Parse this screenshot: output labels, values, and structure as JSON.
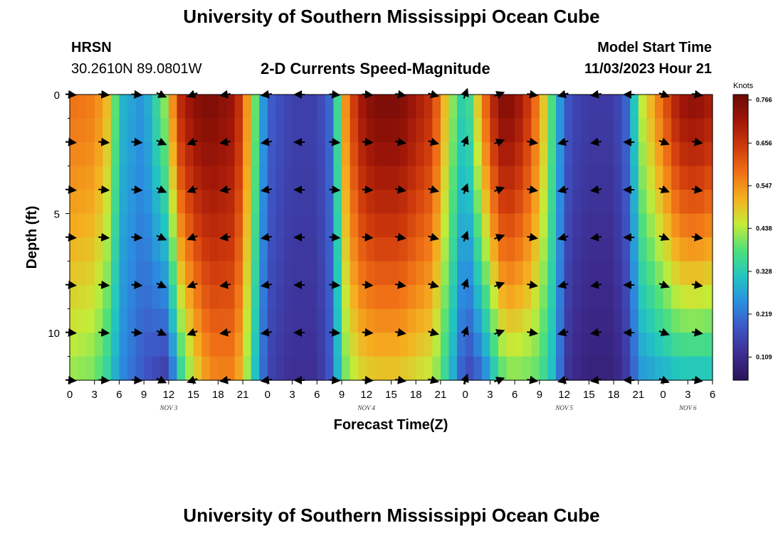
{
  "header": {
    "title": "University of Southern Mississippi Ocean Cube",
    "station": "HRSN",
    "coords": "30.2610N  89.0801W",
    "subtitle": "2-D Currents Speed-Magnitude",
    "model_label": "Model Start Time",
    "model_time": "11/03/2023 Hour 21"
  },
  "footer": {
    "title": "University of Southern Mississippi Ocean Cube"
  },
  "colors": {
    "scale": [
      "#2c1459",
      "#3d2c90",
      "#3e55c6",
      "#2a8fe0",
      "#22c6c0",
      "#4fe07a",
      "#c4ec38",
      "#f5b020",
      "#f07016",
      "#cf3a0c",
      "#a01608",
      "#6a0a06"
    ]
  },
  "chart_data": {
    "type": "heatmap",
    "xlabel": "Forecast Time(Z)",
    "ylabel": "Depth (ft)",
    "x_tick_labels": [
      "0",
      "3",
      "6",
      "9",
      "12",
      "15",
      "18",
      "21",
      "0",
      "3",
      "6",
      "9",
      "12",
      "15",
      "18",
      "21",
      "0",
      "3",
      "6",
      "9",
      "12",
      "15",
      "18",
      "21",
      "0",
      "3",
      "6"
    ],
    "x_ticks_hours": [
      0,
      3,
      6,
      9,
      12,
      15,
      18,
      21,
      24,
      27,
      30,
      33,
      36,
      39,
      42,
      45,
      48,
      51,
      54,
      57,
      60,
      63,
      66,
      69,
      72,
      75,
      78
    ],
    "y_ticks_ft": [
      0,
      5,
      10
    ],
    "y_tick_labels": [
      "0",
      "5",
      "10"
    ],
    "xlim_hours": [
      0,
      78
    ],
    "ylim_ft": [
      0,
      12
    ],
    "day_labels": [
      {
        "hour": 12,
        "text": "NOV 3"
      },
      {
        "hour": 36,
        "text": "NOV 4"
      },
      {
        "hour": 60,
        "text": "NOV 5"
      },
      {
        "hour": 75,
        "text": "NOV 6"
      }
    ],
    "colorbar": {
      "title": "Knots",
      "ticks": [
        0.766,
        0.656,
        0.547,
        0.438,
        0.328,
        0.219,
        0.109
      ],
      "tick_labels": [
        "0.766",
        "0.656",
        "0.547",
        "0.438",
        "0.328",
        "0.219",
        "0.109"
      ],
      "range": [
        0.05,
        0.78
      ]
    },
    "speed_profile": {
      "hours": [
        0,
        3,
        5,
        6,
        9,
        12,
        13,
        15,
        17,
        20,
        21,
        23,
        24,
        25,
        27,
        30,
        32,
        33,
        35,
        37,
        40,
        44,
        46,
        48,
        50,
        52,
        53,
        55,
        57,
        59,
        60,
        61,
        63,
        66,
        68,
        69,
        72,
        74,
        76,
        78
      ],
      "surface_knots": [
        0.58,
        0.57,
        0.48,
        0.3,
        0.25,
        0.45,
        0.66,
        0.74,
        0.76,
        0.72,
        0.62,
        0.32,
        0.2,
        0.18,
        0.15,
        0.15,
        0.22,
        0.5,
        0.7,
        0.76,
        0.76,
        0.66,
        0.45,
        0.3,
        0.55,
        0.74,
        0.76,
        0.7,
        0.55,
        0.32,
        0.2,
        0.16,
        0.14,
        0.14,
        0.22,
        0.42,
        0.6,
        0.72,
        0.74,
        0.7
      ],
      "bottom_knots": [
        0.42,
        0.4,
        0.32,
        0.25,
        0.18,
        0.13,
        0.3,
        0.45,
        0.55,
        0.56,
        0.48,
        0.25,
        0.16,
        0.14,
        0.12,
        0.12,
        0.2,
        0.38,
        0.46,
        0.48,
        0.48,
        0.44,
        0.32,
        0.15,
        0.2,
        0.35,
        0.4,
        0.4,
        0.38,
        0.28,
        0.14,
        0.11,
        0.09,
        0.09,
        0.15,
        0.25,
        0.28,
        0.3,
        0.3,
        0.3
      ]
    },
    "vectors": {
      "depths_ft": [
        0,
        2,
        4,
        6,
        8,
        10,
        12
      ],
      "hours": [
        0,
        4,
        8,
        11,
        15,
        19,
        24,
        28,
        32,
        36,
        40,
        44,
        48,
        52,
        56,
        60,
        64,
        68,
        72,
        76
      ],
      "directions_deg": [
        5,
        5,
        5,
        25,
        160,
        170,
        170,
        180,
        5,
        5,
        10,
        15,
        290,
        340,
        10,
        165,
        170,
        180,
        20,
        10
      ]
    }
  }
}
